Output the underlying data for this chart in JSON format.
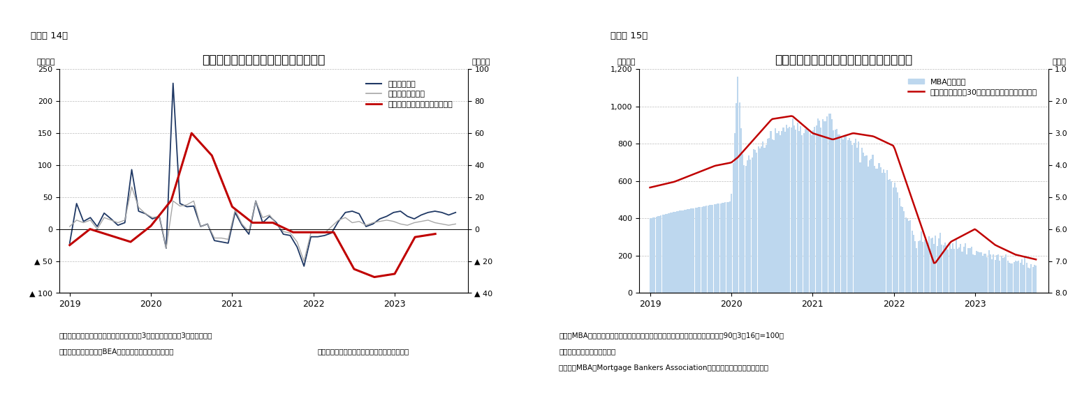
{
  "fig14": {
    "title": "住宅着工件数と実質住宅投資の伸び率",
    "label_left": "（年率）",
    "label_right": "（年率）",
    "caption_label": "（図表 14）",
    "ylim_left": [
      -100,
      250
    ],
    "ylim_right": [
      -40,
      100
    ],
    "yticks_left": [
      -100,
      -50,
      0,
      50,
      100,
      150,
      200,
      250
    ],
    "yticks_right": [
      -40,
      -20,
      0,
      20,
      40,
      60,
      80,
      100
    ],
    "ytick_labels_left": [
      "▲ 100",
      "▲ 50",
      "0",
      "50",
      "100",
      "150",
      "200",
      "250"
    ],
    "ytick_labels_right": [
      "▲ 40",
      "▲ 20",
      "0",
      "20",
      "40",
      "60",
      "80",
      "100"
    ],
    "note1": "（注）住宅着工件数、住宅建築許可件数は3カ月移動平均後の3カ月前比年率",
    "note2": "（資料）センサス局、BEAよりニッセイ基礎研究所作成",
    "note3": "（着工・建築許可：月次、住宅投資：四半期）",
    "legend": [
      "住宅着工件数",
      "住宅建築許可件数",
      "住宅投資（実質伸び率、右軸）"
    ],
    "line1_color": "#1f3864",
    "line2_color": "#a6a6a6",
    "line3_color": "#c00000"
  },
  "fig15": {
    "title": "住宅ローン金利および住宅ローン申請件数",
    "label_left": "（指数）",
    "label_right": "（％）",
    "caption_label": "（図表 15）",
    "ylim_left": [
      0,
      1200
    ],
    "yticks_left": [
      0,
      200,
      400,
      600,
      800,
      1000,
      1200
    ],
    "ytick_labels_left": [
      "0",
      "200",
      "400",
      "600",
      "800",
      "1,000",
      "1,200"
    ],
    "yticks_right": [
      1.0,
      2.0,
      3.0,
      4.0,
      5.0,
      6.0,
      7.0,
      8.0
    ],
    "ytick_labels_right": [
      "1.0",
      "2.0",
      "3.0",
      "4.0",
      "5.0",
      "6.0",
      "7.0",
      "8.0"
    ],
    "note1": "（注）MBA申請件数は住宅購入、借換えを含む住宅ローンの申請件数を指数化（90年3月16日=100）",
    "note2": "　　したもの。季節調整済み",
    "note3": "（資料）MBA（Mortgage Bankers Association）よりニッセイ基礎研究所作成",
    "legend_bar": "MBA申請件数",
    "legend_line": "モーゲージローン30年固定金利（右軸、逆目盛）",
    "bar_color": "#bdd7ee",
    "line_color": "#c00000"
  }
}
